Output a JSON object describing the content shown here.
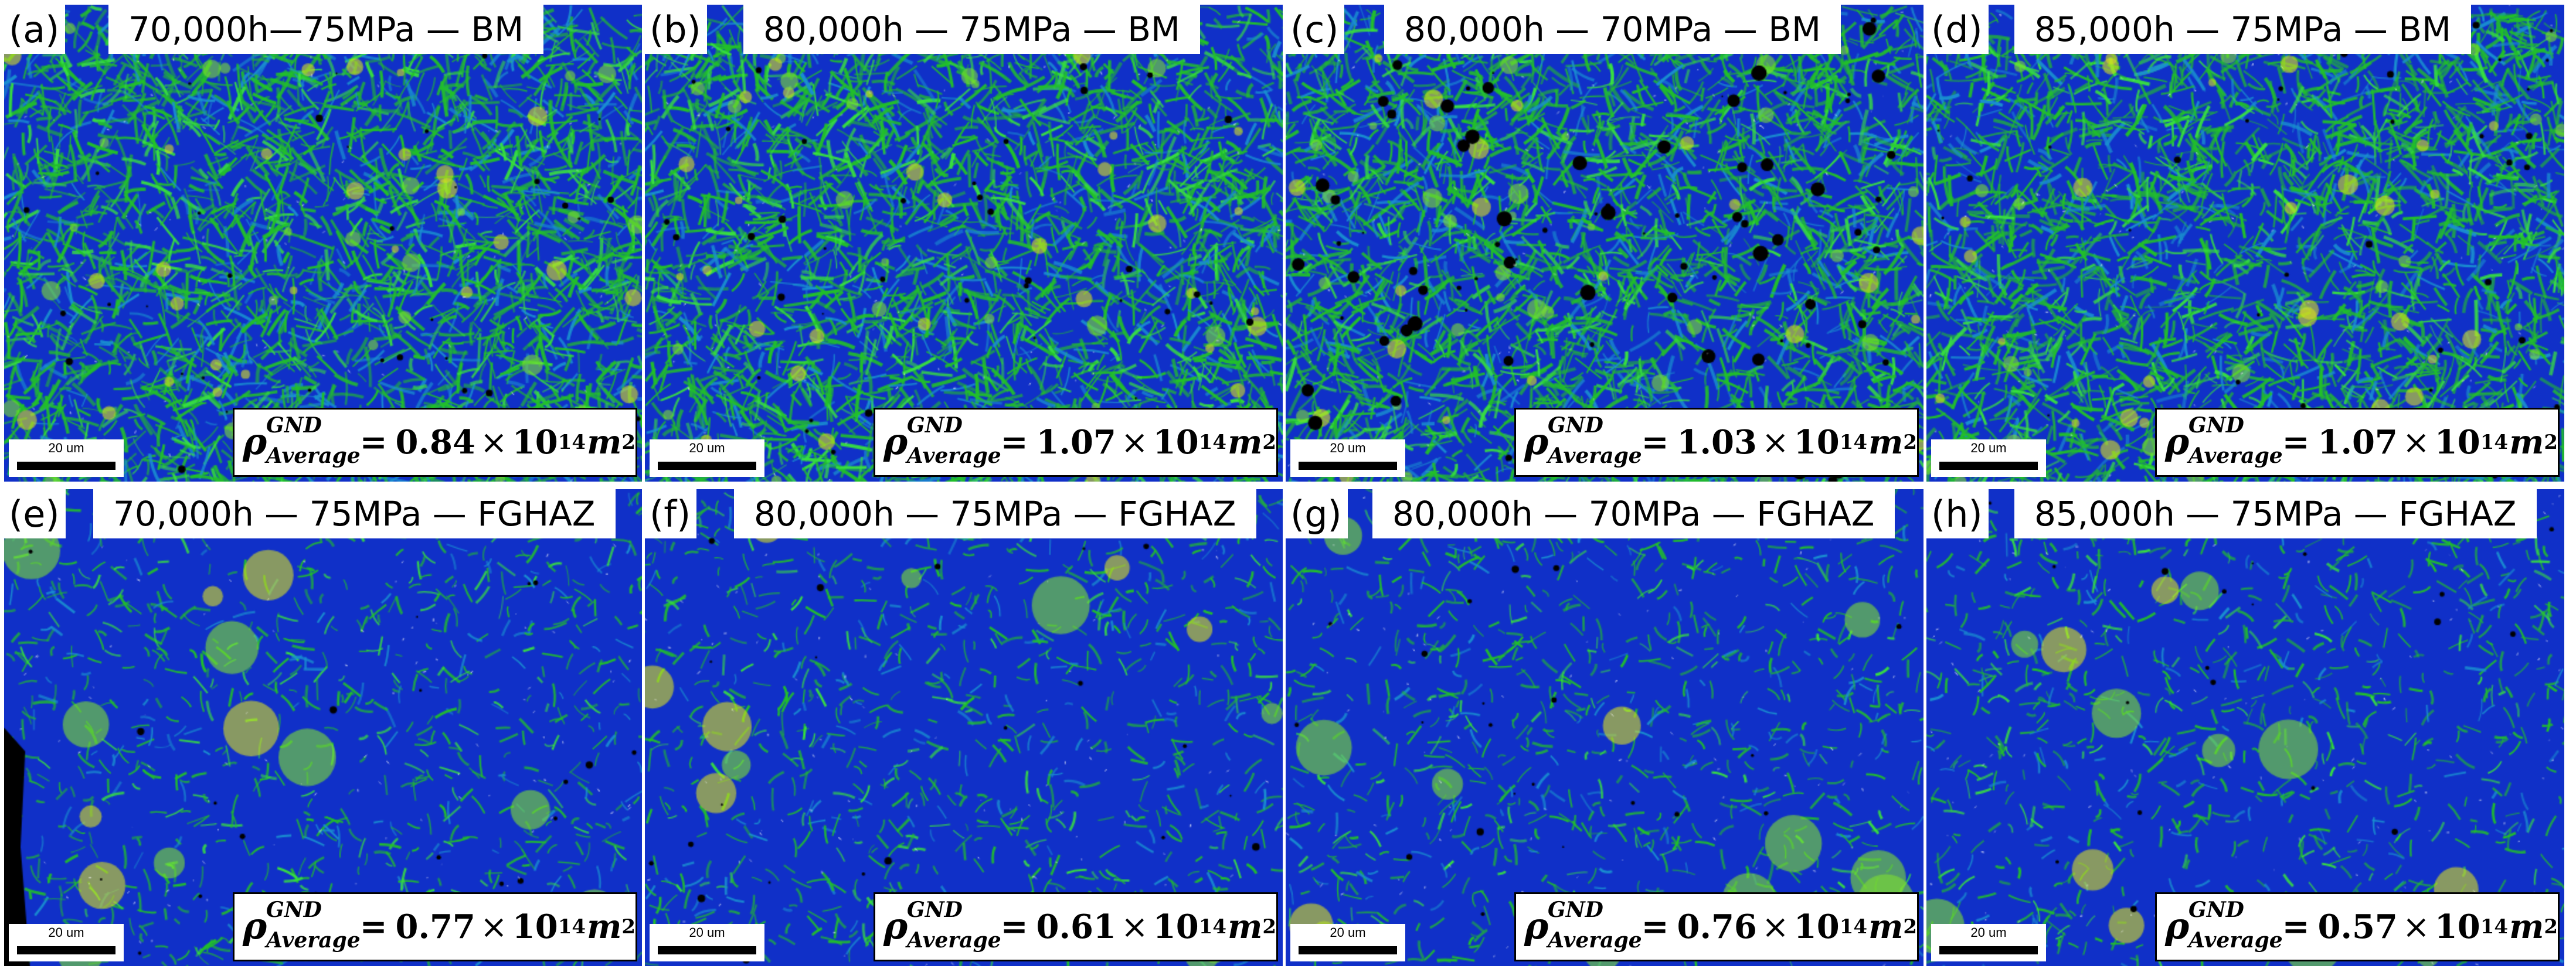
{
  "panels": [
    {
      "letter": "(a)",
      "title": "70,000h—75MPa — BM",
      "rho_value": "0.84",
      "scale_label": "20 um",
      "zone": "BM"
    },
    {
      "letter": "(b)",
      "title": "80,000h — 75MPa — BM",
      "rho_value": "1.07",
      "scale_label": "20 um",
      "zone": "BM"
    },
    {
      "letter": "(c)",
      "title": "80,000h — 70MPa — BM",
      "rho_value": "1.03",
      "scale_label": "20 um",
      "zone": "BM"
    },
    {
      "letter": "(d)",
      "title": "85,000h — 75MPa — BM",
      "rho_value": "1.07",
      "scale_label": "20 um",
      "zone": "BM"
    },
    {
      "letter": "(e)",
      "title": "70,000h — 75MPa — FGHAZ",
      "rho_value": "0.77",
      "scale_label": "20 um",
      "zone": "FGHAZ"
    },
    {
      "letter": "(f)",
      "title": "80,000h — 75MPa — FGHAZ",
      "rho_value": "0.61",
      "scale_label": "20 um",
      "zone": "FGHAZ"
    },
    {
      "letter": "(g)",
      "title": "80,000h — 70MPa — FGHAZ",
      "rho_value": "0.76",
      "scale_label": "20 um",
      "zone": "FGHAZ"
    },
    {
      "letter": "(h)",
      "title": "85,000h — 75MPa — FGHAZ",
      "rho_value": "0.57",
      "scale_label": "20 um",
      "zone": "FGHAZ"
    }
  ],
  "rho": {
    "symbol": "ρ",
    "superscript": "GND",
    "subscript": "Average",
    "equals": "=",
    "times": "×",
    "ten": "10",
    "exponent": "14",
    "unit": "m",
    "unit_exponent": "2"
  },
  "colors": {
    "map_blue": "#1030c8",
    "map_green": "#22c02a",
    "map_yellow": "#d8e020",
    "void_black": "#000000",
    "label_bg": "#ffffff"
  }
}
